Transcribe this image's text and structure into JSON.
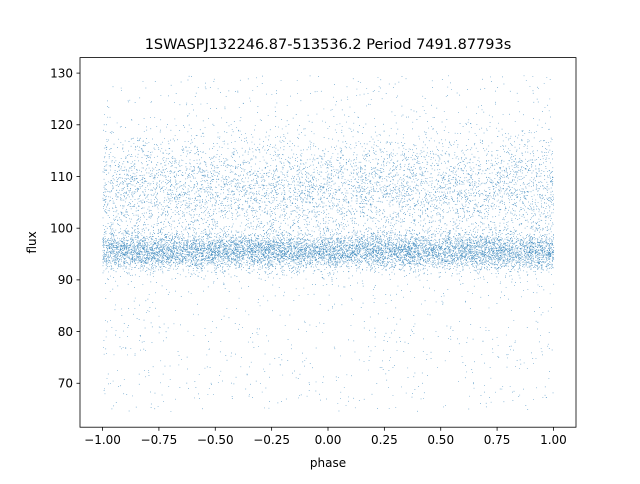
{
  "chart_data": {
    "type": "scatter",
    "title": "1SWASPJ132246.87-513536.2 Period 7491.87793s",
    "xlabel": "phase",
    "ylabel": "flux",
    "xlim": [
      -1.1,
      1.1
    ],
    "ylim": [
      61.5,
      133.0
    ],
    "x_ticks": [
      -1.0,
      -0.75,
      -0.5,
      -0.25,
      0.0,
      0.25,
      0.5,
      0.75,
      1.0
    ],
    "x_tick_labels": [
      "−1.00",
      "−0.75",
      "−0.50",
      "−0.25",
      "0.00",
      "0.25",
      "0.50",
      "0.75",
      "1.00"
    ],
    "y_ticks": [
      70,
      80,
      90,
      100,
      110,
      120,
      130
    ],
    "y_tick_labels": [
      "70",
      "80",
      "90",
      "100",
      "110",
      "120",
      "130"
    ],
    "grid": false,
    "legend": "none",
    "marker_color": "#1f77b4",
    "series": [
      {
        "phase_range": [
          -1.0,
          1.0
        ],
        "flux_range": [
          64.5,
          129.5
        ],
        "dense_core_flux": [
          91.0,
          99.0
        ],
        "dense_core_center": 95.5,
        "secondary_band_flux": [
          99.0,
          116.0
        ],
        "secondary_band_center": 107.5
      }
    ]
  }
}
